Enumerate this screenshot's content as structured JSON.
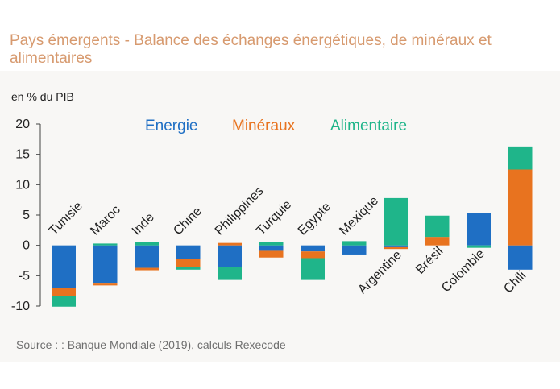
{
  "chart_data": {
    "type": "bar",
    "stacked": true,
    "title": "Pays émergents - Balance des échanges énergétiques, de minéraux et alimentaires",
    "ylabel": "en % du PIB",
    "xlabel": "",
    "ylim": [
      -10,
      20
    ],
    "yticks": [
      20,
      15,
      10,
      5,
      0,
      -5,
      -10
    ],
    "grid": false,
    "legend_position": "top-center",
    "source": "Source :  : Banque Mondiale (2019), calculs Rexecode",
    "categories": [
      "Tunisie",
      "Maroc",
      "Inde",
      "Chine",
      "Philippines",
      "Turquie",
      "Egypte",
      "Mexique",
      "Argentine",
      "Brésil",
      "Colombie",
      "Chili"
    ],
    "series": [
      {
        "name": "Energie",
        "color": "#1f6fc4",
        "values": [
          -7.0,
          -6.3,
          -3.7,
          -2.2,
          -3.6,
          -0.9,
          -1.0,
          -1.5,
          -0.3,
          0.0,
          5.3,
          -4.0
        ]
      },
      {
        "name": "Minéraux",
        "color": "#e8731f",
        "values": [
          -1.4,
          -0.3,
          -0.4,
          -1.3,
          0.4,
          -1.1,
          -1.1,
          0.0,
          -0.3,
          1.4,
          0.0,
          12.5
        ]
      },
      {
        "name": "Alimentaire",
        "color": "#1fb58a",
        "values": [
          -1.7,
          0.3,
          0.5,
          -0.5,
          -2.1,
          0.6,
          -3.6,
          0.7,
          7.8,
          3.5,
          -0.4,
          3.8
        ]
      }
    ]
  }
}
